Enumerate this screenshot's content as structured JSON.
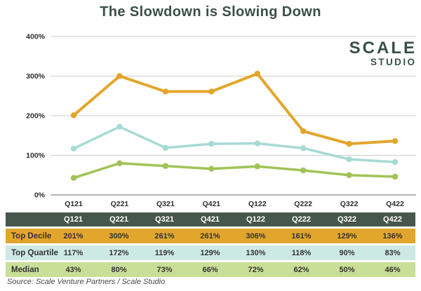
{
  "title": "The Slowdown is Slowing Down",
  "logo": {
    "line1": "SCALE",
    "line2": "STUDIO"
  },
  "source_note": "Source: Scale Venture Partners / Scale Studio",
  "colors": {
    "title_text": "#3A4F47",
    "grid_line": "#CCCCCC",
    "axis_line": "#6E6E6E",
    "tick_text": "#2B2B2B",
    "table_header_bg": "#46574E",
    "table_header_text": "#FFFFFF",
    "table_body_text": "#333333"
  },
  "chart_data": {
    "type": "line",
    "categories": [
      "Q121",
      "Q221",
      "Q321",
      "Q421",
      "Q122",
      "Q222",
      "Q322",
      "Q422"
    ],
    "series": [
      {
        "name": "Top Decile",
        "values": [
          201,
          300,
          261,
          261,
          306,
          161,
          129,
          136
        ],
        "color": "#E2A62C"
      },
      {
        "name": "Top Quartile",
        "values": [
          117,
          172,
          119,
          129,
          130,
          118,
          90,
          83
        ],
        "color": "#A7DAD3"
      },
      {
        "name": "Median",
        "values": [
          43,
          80,
          73,
          66,
          72,
          62,
          50,
          46
        ],
        "color": "#A1C356"
      }
    ],
    "title": "The Slowdown is Slowing Down",
    "xlabel": "",
    "ylabel": "",
    "ylim": [
      0,
      400
    ],
    "yticks": [
      0,
      100,
      200,
      300,
      400
    ],
    "ytick_labels": [
      "0%",
      "100%",
      "200%",
      "300%",
      "400%"
    ],
    "grid": true,
    "legend_position": "none"
  },
  "table": {
    "header": [
      "",
      "Q121",
      "Q221",
      "Q321",
      "Q421",
      "Q122",
      "Q222",
      "Q322",
      "Q422"
    ],
    "rows": [
      {
        "label": "Top Decile",
        "values": [
          "201%",
          "300%",
          "261%",
          "261%",
          "306%",
          "161%",
          "129%",
          "136%"
        ],
        "bg": "#E2A62C"
      },
      {
        "label": "Top Quartile",
        "values": [
          "117%",
          "172%",
          "119%",
          "129%",
          "130%",
          "118%",
          "90%",
          "83%"
        ],
        "bg": "#CDE9E3"
      },
      {
        "label": "Median",
        "values": [
          "43%",
          "80%",
          "73%",
          "66%",
          "72%",
          "62%",
          "50%",
          "46%"
        ],
        "bg": "#C9DE96"
      }
    ]
  }
}
